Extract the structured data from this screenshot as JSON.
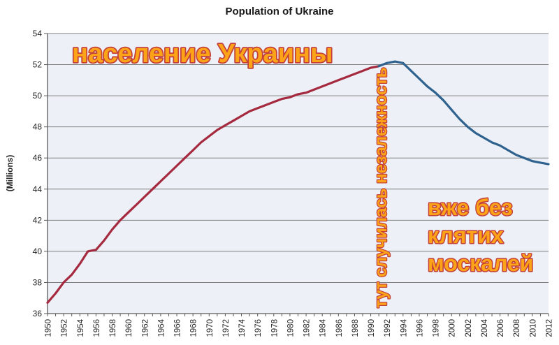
{
  "title": "Population of Ukraine",
  "y_axis_title": "(Millions)",
  "annotations": {
    "top_left": "население Украины",
    "vertical": "тут случилась незалежность",
    "bottom_right_lines": [
      "вже без",
      "клятих",
      "москалей"
    ]
  },
  "colors": {
    "pre_independence_line": "#A52A3F",
    "post_independence_line": "#2F628E",
    "plot_background": "#EDF1F7",
    "gridline": "#7F7F7F",
    "axis": "#595959",
    "tick_label": "#262626",
    "annotation_fill": "#FCA318",
    "annotation_outline": "#C4403A"
  },
  "chart_data": {
    "type": "line",
    "title": "Population of Ukraine",
    "xlabel": "",
    "ylabel": "(Millions)",
    "ylim": [
      36,
      54
    ],
    "ytick_step": 2,
    "xlim": [
      1950,
      2012
    ],
    "xtick_minor_step": 1,
    "xtick_label_step": 2,
    "grid": true,
    "legend_position": "none",
    "series": [
      {
        "name": "1950-1991 (red segment)",
        "color_key": "pre_independence_line",
        "x": [
          1950,
          1951,
          1952,
          1953,
          1954,
          1955,
          1956,
          1957,
          1958,
          1959,
          1960,
          1961,
          1962,
          1963,
          1964,
          1965,
          1966,
          1967,
          1968,
          1969,
          1970,
          1971,
          1972,
          1973,
          1974,
          1975,
          1976,
          1977,
          1978,
          1979,
          1980,
          1981,
          1982,
          1983,
          1984,
          1985,
          1986,
          1987,
          1988,
          1989,
          1990,
          1991
        ],
        "values": [
          36.7,
          37.3,
          38.0,
          38.5,
          39.2,
          40.0,
          40.1,
          40.7,
          41.4,
          42.0,
          42.5,
          43.0,
          43.5,
          44.0,
          44.5,
          45.0,
          45.5,
          46.0,
          46.5,
          47.0,
          47.4,
          47.8,
          48.1,
          48.4,
          48.7,
          49.0,
          49.2,
          49.4,
          49.6,
          49.8,
          49.9,
          50.1,
          50.2,
          50.4,
          50.6,
          50.8,
          51.0,
          51.2,
          51.4,
          51.6,
          51.8,
          51.9
        ]
      },
      {
        "name": "1991-2012 (blue segment)",
        "color_key": "post_independence_line",
        "x": [
          1991,
          1992,
          1993,
          1994,
          1995,
          1996,
          1997,
          1998,
          1999,
          2000,
          2001,
          2002,
          2003,
          2004,
          2005,
          2006,
          2007,
          2008,
          2009,
          2010,
          2011,
          2012
        ],
        "values": [
          51.9,
          52.1,
          52.2,
          52.1,
          51.6,
          51.1,
          50.6,
          50.2,
          49.7,
          49.1,
          48.5,
          48.0,
          47.6,
          47.3,
          47.0,
          46.8,
          46.5,
          46.2,
          46.0,
          45.8,
          45.7,
          45.6
        ]
      }
    ]
  }
}
